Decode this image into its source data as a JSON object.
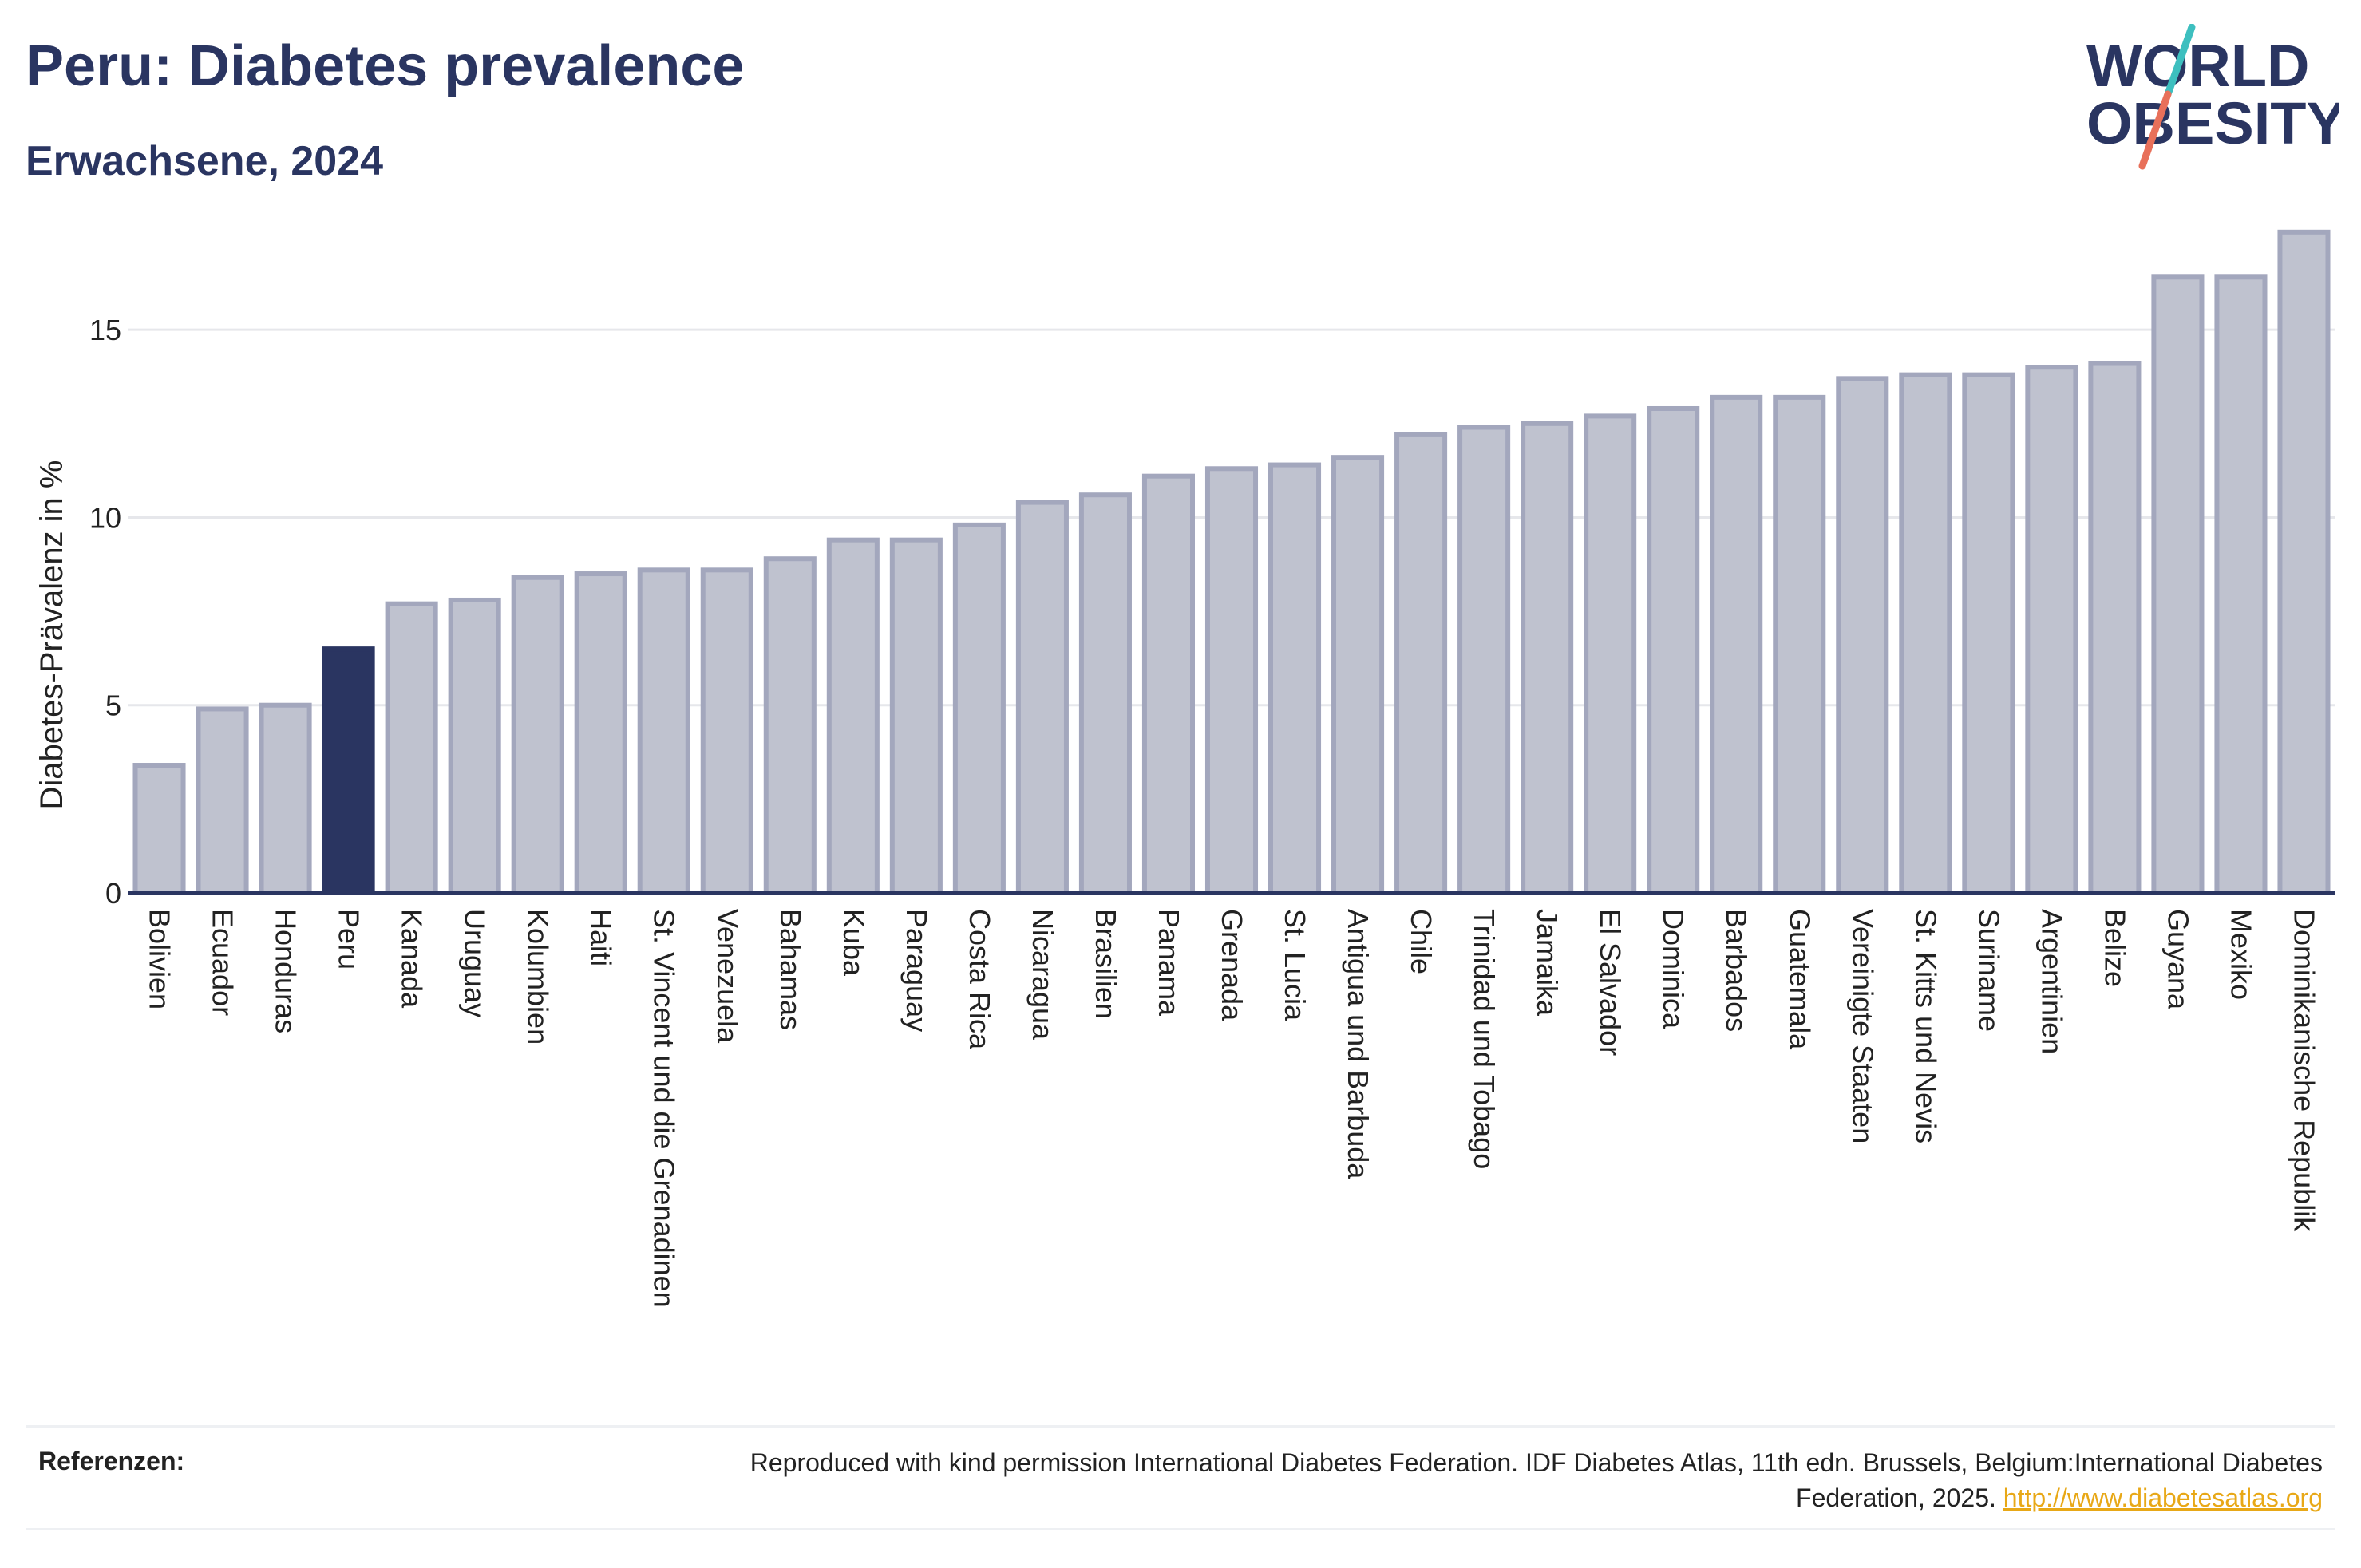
{
  "header": {
    "title": "Peru: Diabetes prevalence",
    "subtitle": "Erwachsene, 2024",
    "logo_line1": "WORLD",
    "logo_line2": "OBESITY"
  },
  "colors": {
    "highlight": "#2a3561",
    "bar_fill": "#bfc2cf",
    "bar_stroke": "#a3a7bd",
    "logo_navy": "#2a3561",
    "logo_teal": "#3dbfbf",
    "logo_coral": "#e8705a",
    "link": "#e8a817"
  },
  "chart_data": {
    "type": "bar",
    "ylabel": "Diabetes-Prävalenz in %",
    "xlabel": "",
    "ylim": [
      0,
      18
    ],
    "yticks": [
      0,
      5,
      10,
      15
    ],
    "grid": true,
    "highlight": "Peru",
    "categories": [
      "Bolivien",
      "Ecuador",
      "Honduras",
      "Peru",
      "Kanada",
      "Uruguay",
      "Kolumbien",
      "Haiti",
      "St. Vincent und die Grenadinen",
      "Venezuela",
      "Bahamas",
      "Kuba",
      "Paraguay",
      "Costa Rica",
      "Nicaragua",
      "Brasilien",
      "Panama",
      "Grenada",
      "St. Lucia",
      "Antigua und Barbuda",
      "Chile",
      "Trinidad und Tobago",
      "Jamaika",
      "El Salvador",
      "Dominica",
      "Barbados",
      "Guatemala",
      "Vereinigte Staaten",
      "St. Kitts und Nevis",
      "Suriname",
      "Argentinien",
      "Belize",
      "Guyana",
      "Mexiko",
      "Dominikanische Republik"
    ],
    "values": [
      3.4,
      4.9,
      5.0,
      6.5,
      7.7,
      7.8,
      8.4,
      8.5,
      8.6,
      8.6,
      8.9,
      9.4,
      9.4,
      9.8,
      10.4,
      10.6,
      11.1,
      11.3,
      11.4,
      11.6,
      12.2,
      12.4,
      12.5,
      12.7,
      12.9,
      13.2,
      13.2,
      13.7,
      13.8,
      13.8,
      14.0,
      14.1,
      16.4,
      16.4,
      17.6
    ]
  },
  "footer": {
    "label": "Referenzen:",
    "text": "Reproduced with kind permission International Diabetes Federation. IDF Diabetes Atlas, 11th edn. Brussels, Belgium:International Diabetes Federation, 2025.",
    "link": "http://www.diabetesatlas.org"
  }
}
